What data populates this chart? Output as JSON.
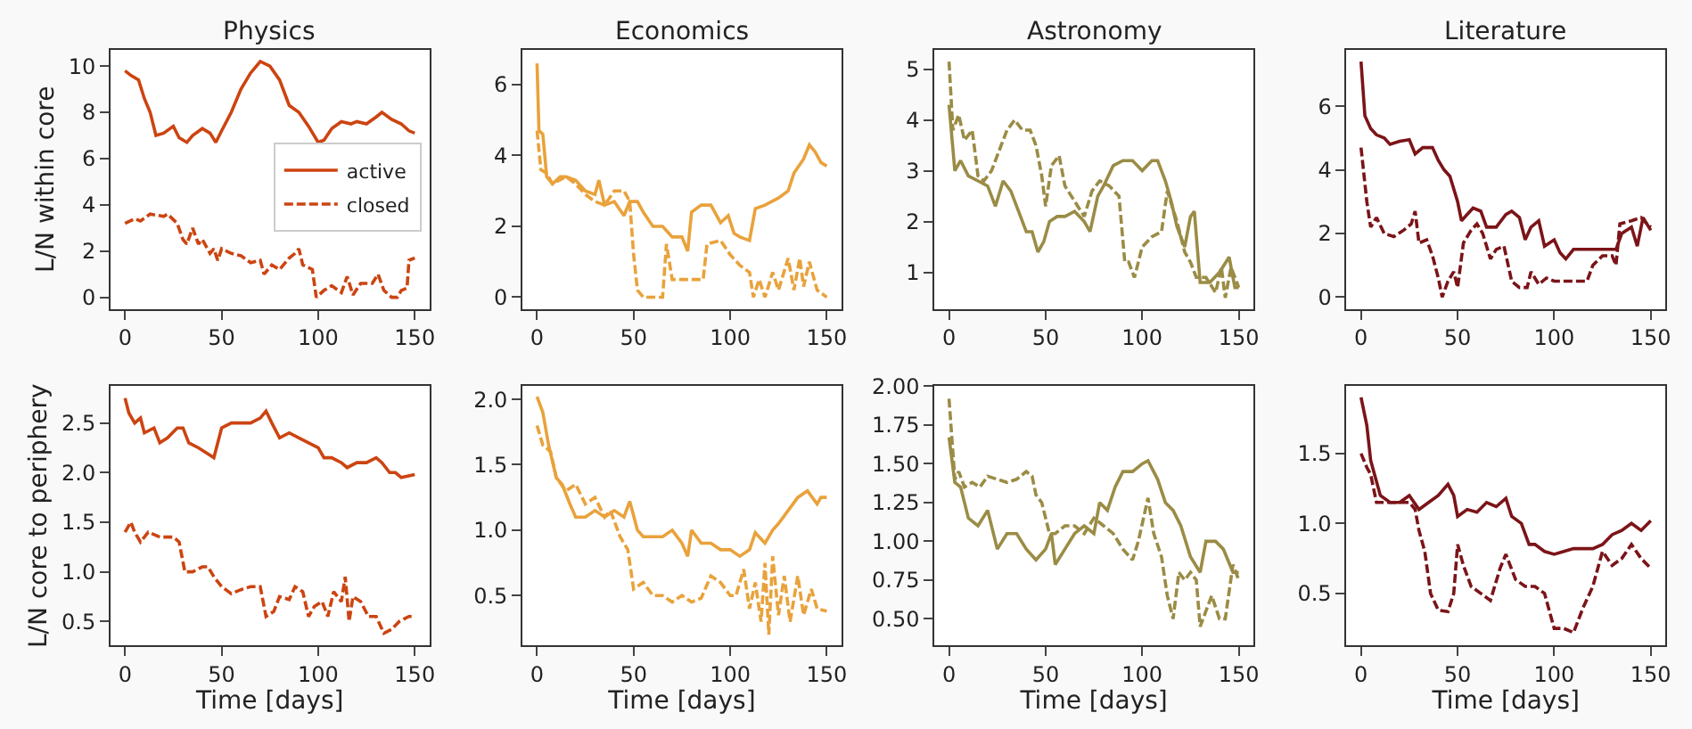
{
  "chart_data": [
    {
      "type": "line",
      "title": "Physics",
      "ylabel": "L/N within core",
      "xlim": [
        -7.5,
        157.5
      ],
      "xticks": [
        0,
        50,
        100,
        150
      ],
      "ylim": [
        -0.5,
        10.7
      ],
      "yticks": [
        0,
        2,
        4,
        6,
        8,
        10
      ],
      "legend": "right",
      "series": [
        {
          "name": "active",
          "color": "#cc4411",
          "line_style": "solid",
          "x": [
            0,
            3,
            7,
            10,
            13,
            16,
            20,
            25,
            28,
            32,
            35,
            40,
            44,
            47,
            50,
            55,
            60,
            65,
            70,
            75,
            80,
            85,
            90,
            95,
            100,
            103,
            107,
            112,
            117,
            120,
            125,
            130,
            133,
            138,
            143,
            147,
            150
          ],
          "values": [
            9.8,
            9.6,
            9.4,
            8.6,
            8.0,
            7.0,
            7.1,
            7.4,
            6.9,
            6.7,
            7.0,
            7.3,
            7.1,
            6.7,
            7.2,
            8.0,
            9.0,
            9.7,
            10.2,
            10.0,
            9.4,
            8.3,
            8.0,
            7.4,
            6.7,
            6.8,
            7.3,
            7.6,
            7.5,
            7.6,
            7.5,
            7.8,
            8.0,
            7.7,
            7.5,
            7.2,
            7.1
          ]
        },
        {
          "name": "closed",
          "color": "#cc4411",
          "line_style": "dashed",
          "x": [
            0,
            5,
            8,
            13,
            20,
            22,
            27,
            30,
            32,
            35,
            38,
            40,
            44,
            46,
            48,
            50,
            55,
            60,
            65,
            70,
            72,
            76,
            80,
            85,
            88,
            90,
            92,
            97,
            99,
            103,
            107,
            112,
            115,
            118,
            122,
            128,
            131,
            134,
            138,
            141,
            143,
            146,
            147,
            150
          ],
          "values": [
            3.2,
            3.4,
            3.3,
            3.6,
            3.5,
            3.6,
            3.2,
            2.5,
            2.3,
            3.0,
            2.3,
            2.5,
            1.9,
            2.1,
            1.6,
            2.1,
            1.9,
            1.8,
            1.5,
            1.6,
            1.0,
            1.4,
            1.2,
            1.7,
            1.9,
            2.1,
            1.4,
            1.2,
            0.0,
            0.3,
            0.5,
            0.2,
            0.9,
            0.1,
            0.6,
            0.6,
            1.0,
            0.3,
            0.0,
            0.0,
            0.3,
            0.4,
            1.6,
            1.7
          ]
        }
      ]
    },
    {
      "type": "line",
      "title": "Economics",
      "xlim": [
        -7.5,
        157.5
      ],
      "xticks": [
        0,
        50,
        100,
        150
      ],
      "ylim": [
        -0.33,
        6.98
      ],
      "yticks": [
        0,
        2,
        4,
        6
      ],
      "series": [
        {
          "color": "#e9a23b",
          "line_style": "solid",
          "x": [
            0,
            1,
            3,
            5,
            8,
            12,
            15,
            20,
            25,
            30,
            32,
            35,
            40,
            45,
            48,
            52,
            55,
            60,
            65,
            70,
            75,
            78,
            80,
            85,
            90,
            95,
            99,
            102,
            105,
            110,
            113,
            118,
            125,
            130,
            133,
            138,
            141,
            144,
            147,
            150
          ],
          "values": [
            6.6,
            4.7,
            4.6,
            3.4,
            3.2,
            3.4,
            3.4,
            3.3,
            3.0,
            2.9,
            3.3,
            2.6,
            2.7,
            2.3,
            2.7,
            2.7,
            2.4,
            2.0,
            2.0,
            1.7,
            1.7,
            1.3,
            2.4,
            2.6,
            2.6,
            2.1,
            2.3,
            1.8,
            1.7,
            1.6,
            2.5,
            2.6,
            2.8,
            3.0,
            3.5,
            3.9,
            4.3,
            4.1,
            3.8,
            3.7
          ]
        },
        {
          "color": "#e9a23b",
          "line_style": "dashed",
          "x": [
            0,
            2,
            5,
            8,
            15,
            20,
            25,
            30,
            35,
            40,
            45,
            48,
            50,
            52,
            55,
            60,
            65,
            67,
            70,
            75,
            80,
            86,
            88,
            95,
            100,
            105,
            110,
            112,
            115,
            118,
            122,
            125,
            130,
            133,
            136,
            138,
            141,
            145,
            150
          ],
          "values": [
            4.7,
            3.6,
            3.5,
            3.2,
            3.4,
            3.2,
            2.9,
            2.7,
            2.6,
            3.0,
            3.0,
            2.7,
            1.2,
            0.2,
            0.0,
            0.0,
            0.0,
            1.5,
            0.5,
            0.5,
            0.5,
            0.5,
            1.5,
            1.6,
            1.2,
            0.9,
            0.7,
            0.0,
            0.5,
            0.0,
            0.7,
            0.2,
            1.1,
            0.2,
            1.1,
            0.3,
            1.0,
            0.2,
            0.0
          ]
        }
      ]
    },
    {
      "type": "line",
      "title": "Astronomy",
      "xlim": [
        -7.5,
        157.5
      ],
      "xticks": [
        0,
        50,
        100,
        150
      ],
      "ylim": [
        0.28,
        5.38
      ],
      "yticks": [
        1,
        2,
        3,
        4,
        5
      ],
      "series": [
        {
          "color": "#9a8c45",
          "line_style": "solid",
          "x": [
            0,
            3,
            6,
            10,
            15,
            20,
            24,
            28,
            32,
            36,
            40,
            43,
            46,
            49,
            52,
            56,
            60,
            65,
            70,
            73,
            77,
            80,
            85,
            90,
            95,
            100,
            105,
            108,
            112,
            115,
            118,
            122,
            125,
            127,
            130,
            135,
            140,
            145,
            148,
            150
          ],
          "values": [
            4.3,
            3.0,
            3.2,
            2.9,
            2.8,
            2.7,
            2.3,
            2.8,
            2.6,
            2.2,
            1.8,
            1.8,
            1.4,
            1.6,
            2.0,
            2.1,
            2.1,
            2.2,
            2.0,
            1.8,
            2.5,
            2.7,
            3.1,
            3.2,
            3.2,
            3.0,
            3.2,
            3.2,
            2.8,
            2.4,
            1.9,
            1.5,
            2.1,
            2.2,
            0.8,
            0.8,
            1.0,
            1.3,
            0.7,
            0.7
          ]
        },
        {
          "color": "#9a8c45",
          "line_style": "dashed",
          "x": [
            0,
            2,
            5,
            8,
            12,
            15,
            18,
            22,
            26,
            30,
            34,
            38,
            42,
            45,
            48,
            50,
            53,
            57,
            60,
            65,
            70,
            74,
            78,
            83,
            88,
            91,
            93,
            96,
            100,
            105,
            110,
            113,
            118,
            122,
            125,
            128,
            133,
            138,
            141,
            143,
            146,
            150
          ],
          "values": [
            5.15,
            3.8,
            4.1,
            3.6,
            3.8,
            2.9,
            2.8,
            3.0,
            3.4,
            3.8,
            4.0,
            3.8,
            3.8,
            3.5,
            2.9,
            2.3,
            3.1,
            3.3,
            2.7,
            2.4,
            2.1,
            2.6,
            2.8,
            2.7,
            2.5,
            1.2,
            1.2,
            0.9,
            1.5,
            1.7,
            1.8,
            2.6,
            2.0,
            1.4,
            1.2,
            0.9,
            0.9,
            0.6,
            1.1,
            0.5,
            1.1,
            0.7
          ]
        }
      ]
    },
    {
      "type": "line",
      "title": "Literature",
      "xlim": [
        -7.5,
        157.5
      ],
      "xticks": [
        0,
        50,
        100,
        150
      ],
      "ylim": [
        -0.37,
        7.77
      ],
      "yticks": [
        0,
        2,
        4,
        6
      ],
      "series": [
        {
          "color": "#7b1418",
          "line_style": "solid",
          "x": [
            0,
            2,
            5,
            8,
            12,
            15,
            20,
            25,
            28,
            32,
            37,
            40,
            43,
            46,
            50,
            52,
            55,
            58,
            62,
            65,
            70,
            75,
            78,
            82,
            85,
            88,
            92,
            95,
            100,
            103,
            106,
            110,
            120,
            132,
            135,
            140,
            143,
            146,
            150
          ],
          "values": [
            7.4,
            5.7,
            5.3,
            5.1,
            5.0,
            4.8,
            4.9,
            4.95,
            4.5,
            4.7,
            4.7,
            4.3,
            4.0,
            3.8,
            3.0,
            2.4,
            2.6,
            2.8,
            2.7,
            2.2,
            2.2,
            2.6,
            2.7,
            2.5,
            1.8,
            2.2,
            2.4,
            1.6,
            1.8,
            1.4,
            1.2,
            1.5,
            1.5,
            1.5,
            2.0,
            2.2,
            1.6,
            2.5,
            2.1
          ]
        },
        {
          "color": "#7b1418",
          "line_style": "dashed",
          "x": [
            0,
            3,
            5,
            8,
            12,
            17,
            22,
            26,
            28,
            30,
            34,
            37,
            40,
            42,
            45,
            48,
            50,
            53,
            57,
            60,
            63,
            67,
            70,
            74,
            78,
            82,
            86,
            88,
            92,
            96,
            100,
            110,
            117,
            120,
            125,
            130,
            132,
            134,
            140,
            145,
            148,
            150
          ],
          "values": [
            4.7,
            3.0,
            2.2,
            2.5,
            2.0,
            1.9,
            2.1,
            2.3,
            2.7,
            1.7,
            1.8,
            1.3,
            0.6,
            0.0,
            0.5,
            0.8,
            0.3,
            1.7,
            2.1,
            2.3,
            2.0,
            1.2,
            1.5,
            1.6,
            0.5,
            0.3,
            0.3,
            0.8,
            0.4,
            0.6,
            0.5,
            0.5,
            0.5,
            1.0,
            1.3,
            1.3,
            1.0,
            2.3,
            2.4,
            2.5,
            2.3,
            2.2
          ]
        }
      ]
    },
    {
      "type": "line",
      "xlabel": "Time [days]",
      "ylabel": "L/N core to periphery",
      "xlim": [
        -7.5,
        157.5
      ],
      "xticks": [
        0,
        50,
        100,
        150
      ],
      "ylim": [
        0.26,
        2.87
      ],
      "yticks": [
        {
          "value": 0.5,
          "label": "0.5"
        },
        {
          "value": 1,
          "label": "1.0"
        },
        {
          "value": 1.5,
          "label": "1.5"
        },
        {
          "value": 2,
          "label": "2.0"
        },
        {
          "value": 2.5,
          "label": "2.5"
        }
      ],
      "series": [
        {
          "color": "#cc4411",
          "line_style": "solid",
          "x": [
            0,
            2,
            5,
            8,
            10,
            15,
            18,
            22,
            27,
            30,
            33,
            38,
            42,
            46,
            50,
            55,
            60,
            65,
            70,
            73,
            76,
            80,
            85,
            90,
            95,
            100,
            103,
            107,
            112,
            115,
            120,
            125,
            130,
            133,
            137,
            140,
            143,
            150
          ],
          "values": [
            2.75,
            2.6,
            2.5,
            2.55,
            2.4,
            2.45,
            2.3,
            2.35,
            2.45,
            2.45,
            2.3,
            2.25,
            2.2,
            2.15,
            2.45,
            2.5,
            2.5,
            2.5,
            2.55,
            2.62,
            2.5,
            2.35,
            2.4,
            2.35,
            2.3,
            2.25,
            2.15,
            2.15,
            2.1,
            2.05,
            2.1,
            2.1,
            2.15,
            2.1,
            2.0,
            2.0,
            1.95,
            1.98
          ]
        },
        {
          "color": "#cc4411",
          "line_style": "dashed",
          "x": [
            0,
            3,
            5,
            8,
            12,
            18,
            25,
            28,
            31,
            35,
            40,
            43,
            46,
            50,
            55,
            60,
            65,
            70,
            73,
            77,
            80,
            85,
            88,
            92,
            95,
            98,
            102,
            105,
            108,
            112,
            114,
            116,
            118,
            122,
            126,
            130,
            134,
            138,
            142,
            147,
            150
          ],
          "values": [
            1.4,
            1.5,
            1.4,
            1.3,
            1.4,
            1.35,
            1.35,
            1.3,
            1.0,
            1.0,
            1.05,
            1.05,
            0.95,
            0.85,
            0.78,
            0.82,
            0.85,
            0.85,
            0.55,
            0.6,
            0.75,
            0.72,
            0.85,
            0.8,
            0.55,
            0.65,
            0.7,
            0.55,
            0.8,
            0.7,
            0.95,
            0.5,
            0.75,
            0.7,
            0.55,
            0.55,
            0.38,
            0.42,
            0.5,
            0.55,
            0.55
          ]
        }
      ]
    },
    {
      "type": "line",
      "xlabel": "Time [days]",
      "xlim": [
        -7.5,
        157.5
      ],
      "xticks": [
        0,
        50,
        100,
        150
      ],
      "ylim": [
        0.12,
        2.1
      ],
      "yticks": [
        {
          "value": 0.5,
          "label": "0.5"
        },
        {
          "value": 1,
          "label": "1.0"
        },
        {
          "value": 1.5,
          "label": "1.5"
        },
        {
          "value": 2,
          "label": "2.0"
        }
      ],
      "series": [
        {
          "color": "#e9a23b",
          "line_style": "solid",
          "x": [
            0,
            3,
            6,
            10,
            13,
            17,
            20,
            25,
            30,
            35,
            40,
            45,
            48,
            52,
            55,
            60,
            65,
            70,
            75,
            78,
            80,
            85,
            90,
            95,
            100,
            105,
            110,
            113,
            118,
            122,
            125,
            130,
            135,
            140,
            145,
            147,
            150
          ],
          "values": [
            2.02,
            1.9,
            1.65,
            1.4,
            1.35,
            1.2,
            1.1,
            1.1,
            1.15,
            1.1,
            1.15,
            1.1,
            1.22,
            1.0,
            0.95,
            0.95,
            0.95,
            1.0,
            0.9,
            0.8,
            1.0,
            0.9,
            0.9,
            0.85,
            0.85,
            0.8,
            0.85,
            0.98,
            0.9,
            1.0,
            1.05,
            1.15,
            1.25,
            1.3,
            1.2,
            1.25,
            1.25
          ]
        },
        {
          "color": "#e9a23b",
          "line_style": "dashed",
          "x": [
            0,
            3,
            7,
            10,
            15,
            20,
            25,
            30,
            35,
            38,
            43,
            47,
            50,
            55,
            60,
            65,
            70,
            75,
            80,
            85,
            90,
            95,
            100,
            103,
            107,
            110,
            113,
            116,
            118,
            120,
            122,
            125,
            128,
            131,
            135,
            138,
            142,
            145,
            150
          ],
          "values": [
            1.8,
            1.65,
            1.6,
            1.4,
            1.3,
            1.35,
            1.2,
            1.25,
            1.1,
            1.15,
            0.95,
            0.85,
            0.55,
            0.6,
            0.5,
            0.5,
            0.45,
            0.5,
            0.45,
            0.48,
            0.65,
            0.6,
            0.5,
            0.5,
            0.7,
            0.4,
            0.6,
            0.3,
            0.75,
            0.2,
            0.8,
            0.35,
            0.65,
            0.3,
            0.65,
            0.35,
            0.55,
            0.4,
            0.38
          ]
        }
      ]
    },
    {
      "type": "line",
      "xlabel": "Time [days]",
      "xlim": [
        -7.5,
        157.5
      ],
      "xticks": [
        0,
        50,
        100,
        150
      ],
      "ylim": [
        0.33,
        2.0
      ],
      "yticks": [
        {
          "value": 0.5,
          "label": "0.50"
        },
        {
          "value": 0.75,
          "label": "0.75"
        },
        {
          "value": 1,
          "label": "1.00"
        },
        {
          "value": 1.25,
          "label": "1.25"
        },
        {
          "value": 1.5,
          "label": "1.50"
        },
        {
          "value": 1.75,
          "label": "1.75"
        },
        {
          "value": 2,
          "label": "2.00"
        }
      ],
      "series": [
        {
          "color": "#9a8c45",
          "line_style": "solid",
          "x": [
            0,
            3,
            6,
            10,
            15,
            20,
            25,
            30,
            35,
            40,
            45,
            50,
            53,
            55,
            60,
            65,
            70,
            75,
            78,
            82,
            86,
            90,
            95,
            100,
            103,
            108,
            112,
            116,
            120,
            125,
            130,
            133,
            138,
            142,
            147,
            150
          ],
          "values": [
            1.67,
            1.38,
            1.35,
            1.15,
            1.1,
            1.2,
            0.95,
            1.05,
            1.05,
            0.95,
            0.88,
            0.95,
            1.05,
            0.85,
            0.95,
            1.05,
            1.1,
            1.05,
            1.25,
            1.2,
            1.35,
            1.45,
            1.45,
            1.5,
            1.52,
            1.4,
            1.25,
            1.2,
            1.1,
            0.9,
            0.8,
            1.0,
            1.0,
            0.95,
            0.8,
            0.8
          ]
        },
        {
          "color": "#9a8c45",
          "line_style": "dashed",
          "x": [
            0,
            3,
            5,
            8,
            12,
            16,
            20,
            25,
            30,
            35,
            40,
            43,
            45,
            48,
            52,
            55,
            60,
            65,
            70,
            75,
            80,
            85,
            90,
            95,
            98,
            103,
            106,
            110,
            113,
            116,
            119,
            122,
            125,
            128,
            130,
            133,
            136,
            140,
            143,
            147,
            150
          ],
          "values": [
            1.92,
            1.4,
            1.45,
            1.35,
            1.38,
            1.35,
            1.42,
            1.4,
            1.38,
            1.4,
            1.45,
            1.42,
            1.3,
            1.25,
            1.05,
            1.05,
            1.1,
            1.1,
            1.05,
            1.15,
            1.1,
            1.05,
            0.95,
            0.88,
            1.0,
            1.28,
            1.05,
            0.9,
            0.65,
            0.5,
            0.8,
            0.75,
            0.8,
            0.75,
            0.45,
            0.55,
            0.65,
            0.5,
            0.5,
            0.85,
            0.75
          ]
        }
      ]
    },
    {
      "type": "line",
      "xlabel": "Time [days]",
      "xlim": [
        -7.5,
        157.5
      ],
      "xticks": [
        0,
        50,
        100,
        150
      ],
      "ylim": [
        0.13,
        1.98
      ],
      "yticks": [
        {
          "value": 0.5,
          "label": "0.5"
        },
        {
          "value": 1,
          "label": "1.0"
        },
        {
          "value": 1.5,
          "label": "1.5"
        }
      ],
      "series": [
        {
          "color": "#7b1418",
          "line_style": "solid",
          "x": [
            0,
            3,
            5,
            8,
            10,
            15,
            20,
            25,
            30,
            35,
            40,
            45,
            48,
            50,
            55,
            60,
            65,
            70,
            75,
            78,
            83,
            87,
            90,
            95,
            100,
            105,
            110,
            115,
            120,
            125,
            130,
            135,
            140,
            145,
            150
          ],
          "values": [
            1.9,
            1.7,
            1.45,
            1.3,
            1.2,
            1.15,
            1.15,
            1.2,
            1.1,
            1.15,
            1.2,
            1.28,
            1.2,
            1.05,
            1.1,
            1.08,
            1.15,
            1.12,
            1.18,
            1.05,
            1.0,
            0.85,
            0.85,
            0.8,
            0.78,
            0.8,
            0.82,
            0.82,
            0.82,
            0.85,
            0.92,
            0.95,
            1.0,
            0.95,
            1.02
          ]
        },
        {
          "color": "#7b1418",
          "line_style": "dashed",
          "x": [
            0,
            3,
            5,
            8,
            12,
            18,
            25,
            28,
            30,
            33,
            36,
            40,
            45,
            48,
            50,
            53,
            57,
            62,
            67,
            72,
            75,
            80,
            85,
            90,
            95,
            100,
            105,
            110,
            115,
            120,
            125,
            130,
            135,
            140,
            145,
            150
          ],
          "values": [
            1.5,
            1.4,
            1.35,
            1.15,
            1.15,
            1.15,
            1.15,
            1.1,
            0.95,
            0.8,
            0.5,
            0.38,
            0.37,
            0.5,
            0.85,
            0.7,
            0.55,
            0.5,
            0.45,
            0.68,
            0.78,
            0.6,
            0.55,
            0.55,
            0.5,
            0.25,
            0.25,
            0.22,
            0.4,
            0.55,
            0.8,
            0.7,
            0.75,
            0.85,
            0.75,
            0.68
          ]
        }
      ]
    }
  ]
}
